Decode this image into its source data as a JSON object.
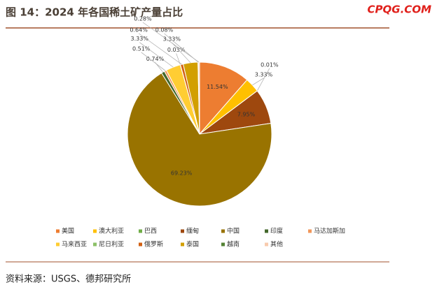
{
  "chart_data": {
    "type": "pie",
    "title": "图 14：2024 年各国稀土矿产量占比",
    "logo": "CPQG.COM",
    "source": "资料来源：USGS、德邦研究所",
    "categories": [
      "美国",
      "澳大利亚",
      "巴西",
      "缅甸",
      "中国",
      "印度",
      "马达加斯加",
      "马来西亚",
      "尼日利亚",
      "俄罗斯",
      "泰国",
      "越南",
      "其他"
    ],
    "values": [
      11.54,
      3.33,
      0.01,
      7.95,
      69.23,
      0.74,
      0.51,
      3.33,
      0.03,
      0.64,
      3.33,
      0.08,
      0.28
    ],
    "value_labels": [
      "11.54%",
      "3.33%",
      "0.01%",
      "7.95%",
      "69.23%",
      "0.74%",
      "0.51%",
      "3.33%",
      "0.03%",
      "0.64%",
      "3.33%",
      "0.08%",
      "0.28%"
    ],
    "colors": [
      "#ed7d31",
      "#ffc000",
      "#70ad47",
      "#9e480e",
      "#997300",
      "#43682b",
      "#f1975a",
      "#ffcd33",
      "#8cc168",
      "#d26012",
      "#d29f00",
      "#548235",
      "#f8cbad"
    ],
    "legend": "bottom"
  }
}
